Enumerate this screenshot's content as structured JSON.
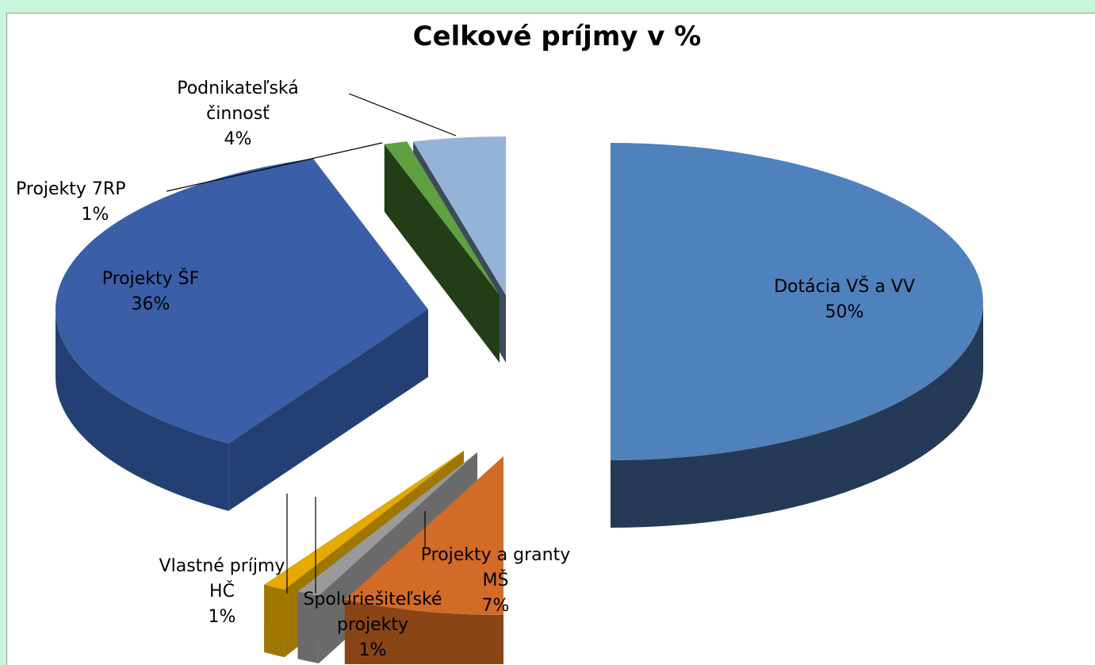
{
  "chart_data": {
    "type": "pie",
    "style": "3d-exploded",
    "title": "Celkové príjmy v %",
    "slices": [
      {
        "name": "Dotácia VŠ a VV",
        "value": 50,
        "label_line1": "Dotácia VŠ a VV",
        "label_line2": "",
        "pct": "50%",
        "color": "#4f81bd",
        "side": "#243a56"
      },
      {
        "name": "Projekty a granty MŠ",
        "value": 7,
        "label_line1": "Projekty a granty",
        "label_line2": "MŠ",
        "pct": "7%",
        "color": "#d26a28",
        "side": "#8a4516"
      },
      {
        "name": "Spoluriešiteľské projekty",
        "value": 1,
        "label_line1": "Spoluriešiteľské",
        "label_line2": "projekty",
        "pct": "1%",
        "color": "#9a9a9a",
        "side": "#6a6a6a"
      },
      {
        "name": "Vlastné príjmy HČ",
        "value": 1,
        "label_line1": "Vlastné príjmy",
        "label_line2": "HČ",
        "pct": "1%",
        "color": "#e5a900",
        "side": "#9f7600"
      },
      {
        "name": "Projekty ŠF",
        "value": 36,
        "label_line1": "Projekty ŠF",
        "label_line2": "",
        "pct": "36%",
        "color": "#3a5fa7",
        "side": "#243f74"
      },
      {
        "name": "Projekty 7RP",
        "value": 1,
        "label_line1": "Projekty 7RP",
        "label_line2": "",
        "pct": "1%",
        "color": "#5fa040",
        "side": "#233d17"
      },
      {
        "name": "Podnikateľská činnosť",
        "value": 4,
        "label_line1": "Podnikateľská",
        "label_line2": "činnosť",
        "pct": "4%",
        "color": "#95b3d7",
        "side": "#3d4a5c"
      }
    ]
  }
}
